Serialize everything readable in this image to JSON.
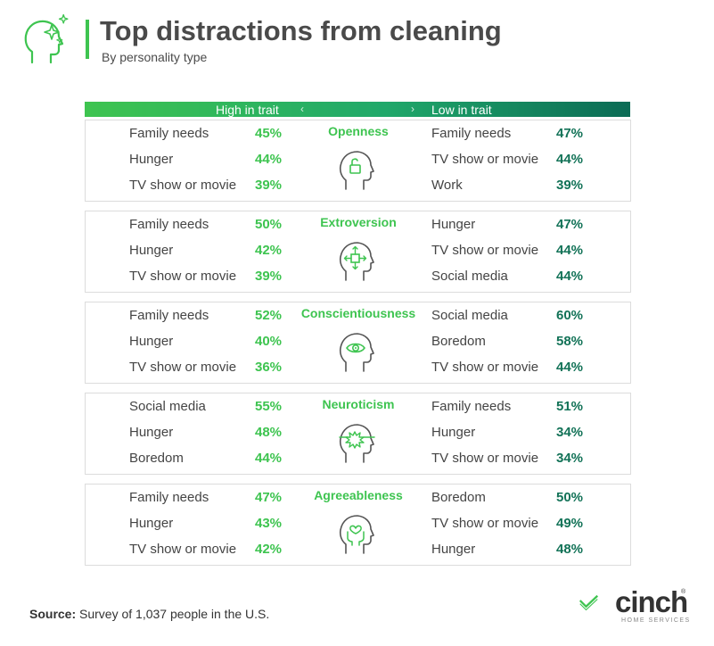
{
  "header": {
    "title": "Top distractions from cleaning",
    "subtitle": "By personality type",
    "icon": "head-sparkle-icon"
  },
  "legend": {
    "high_label": "High in trait",
    "low_label": "Low in trait",
    "left_chevron": "‹",
    "right_chevron": "›"
  },
  "colors": {
    "high": "#3ec450",
    "low": "#127257",
    "border": "#dcdcdc"
  },
  "chart_data": {
    "type": "table",
    "title": "Top distractions from cleaning",
    "subtitle": "By personality type",
    "columns": [
      "High in trait",
      "Low in trait"
    ],
    "traits": [
      {
        "name": "Openness",
        "icon": "head-unlock-icon",
        "high": [
          {
            "label": "Family needs",
            "value": "45%"
          },
          {
            "label": "Hunger",
            "value": "44%"
          },
          {
            "label": "TV show or movie",
            "value": "39%"
          }
        ],
        "low": [
          {
            "label": "Family needs",
            "value": "47%"
          },
          {
            "label": "TV show or movie",
            "value": "44%"
          },
          {
            "label": "Work",
            "value": "39%"
          }
        ]
      },
      {
        "name": "Extroversion",
        "icon": "head-arrows-icon",
        "high": [
          {
            "label": "Family needs",
            "value": "50%"
          },
          {
            "label": "Hunger",
            "value": "42%"
          },
          {
            "label": "TV show or movie",
            "value": "39%"
          }
        ],
        "low": [
          {
            "label": "Hunger",
            "value": "47%"
          },
          {
            "label": "TV show or movie",
            "value": "44%"
          },
          {
            "label": "Social media",
            "value": "44%"
          }
        ]
      },
      {
        "name": "Conscientiousness",
        "icon": "head-eye-icon",
        "high": [
          {
            "label": "Family needs",
            "value": "52%"
          },
          {
            "label": "Hunger",
            "value": "40%"
          },
          {
            "label": "TV show or movie",
            "value": "36%"
          }
        ],
        "low": [
          {
            "label": "Social media",
            "value": "60%"
          },
          {
            "label": "Boredom",
            "value": "58%"
          },
          {
            "label": "TV show or movie",
            "value": "44%"
          }
        ]
      },
      {
        "name": "Neuroticism",
        "icon": "head-burst-icon",
        "high": [
          {
            "label": "Social media",
            "value": "55%"
          },
          {
            "label": "Hunger",
            "value": "48%"
          },
          {
            "label": "Boredom",
            "value": "44%"
          }
        ],
        "low": [
          {
            "label": "Family needs",
            "value": "51%"
          },
          {
            "label": "Hunger",
            "value": "34%"
          },
          {
            "label": "TV show or movie",
            "value": "34%"
          }
        ]
      },
      {
        "name": "Agreeableness",
        "icon": "head-heart-hands-icon",
        "high": [
          {
            "label": "Family needs",
            "value": "47%"
          },
          {
            "label": "Hunger",
            "value": "43%"
          },
          {
            "label": "TV show or movie",
            "value": "42%"
          }
        ],
        "low": [
          {
            "label": "Boredom",
            "value": "50%"
          },
          {
            "label": "TV show or movie",
            "value": "49%"
          },
          {
            "label": "Hunger",
            "value": "48%"
          }
        ]
      }
    ]
  },
  "footer": {
    "source_label": "Source:",
    "source_text": " Survey of 1,037 people in the U.S.",
    "logo_word": "cinch",
    "logo_sub": "HOME SERVICES",
    "logo_tm": "®"
  }
}
